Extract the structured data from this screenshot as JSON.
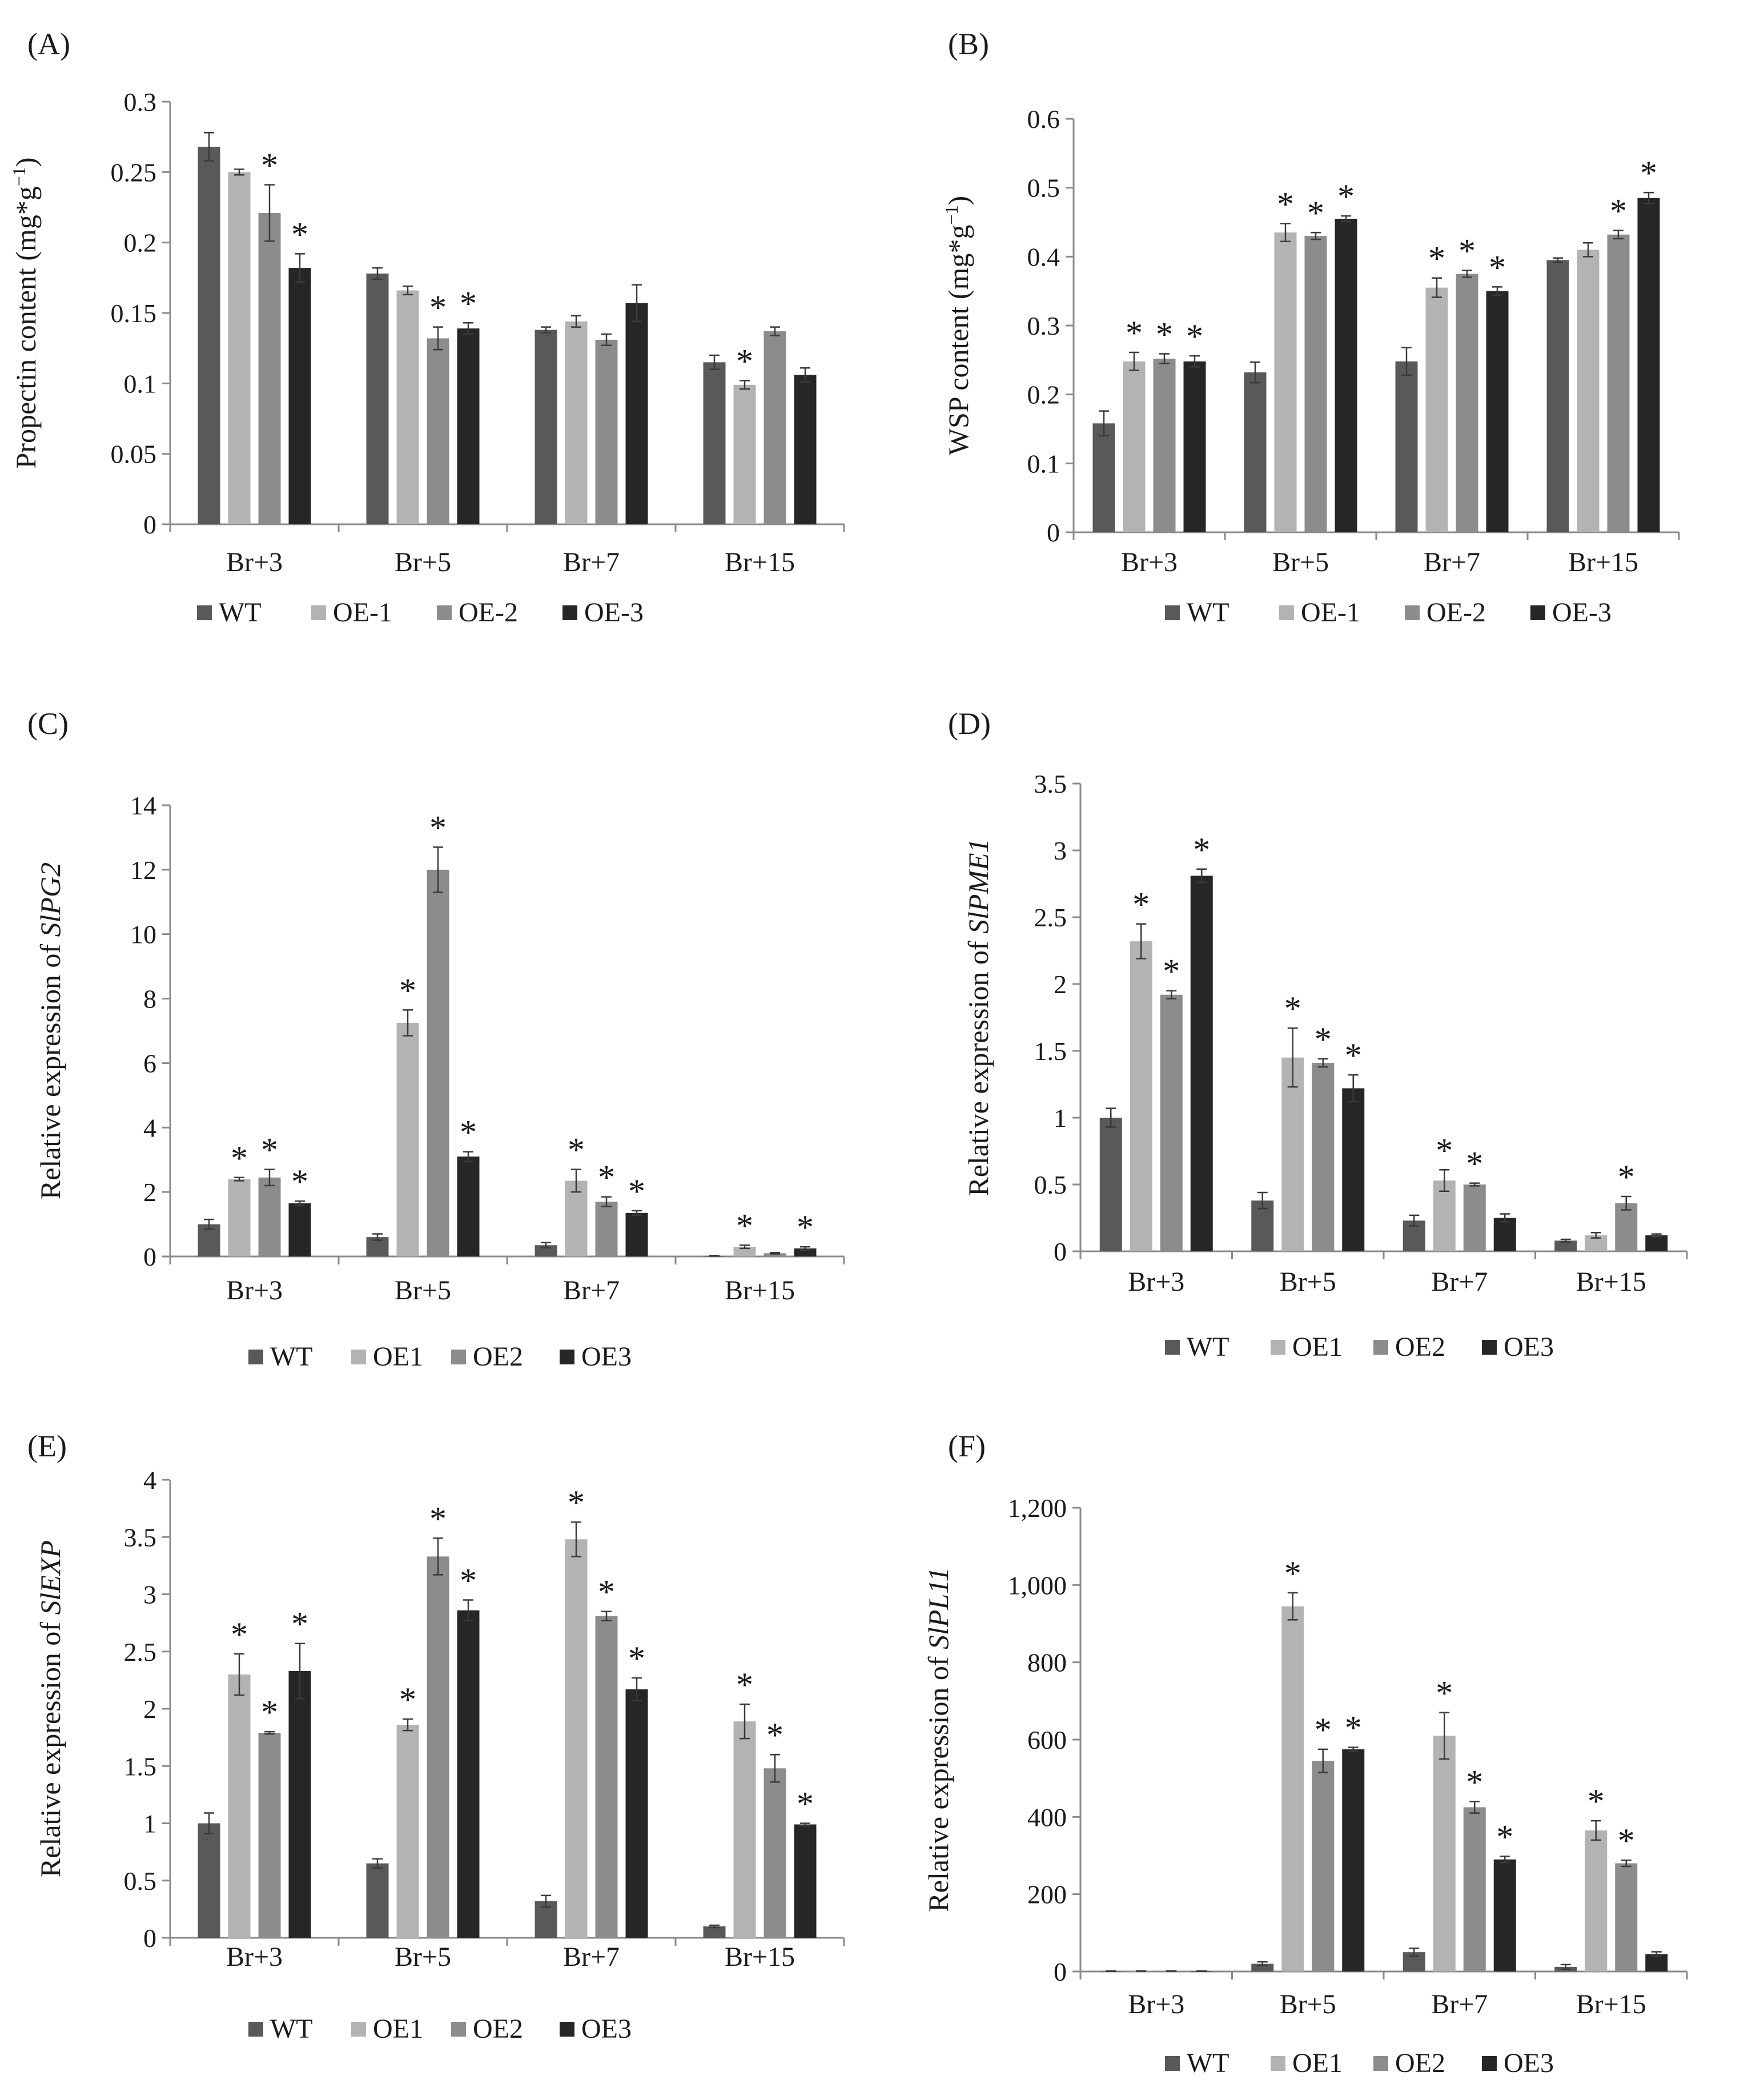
{
  "colors": {
    "WT": "#595959",
    "OE1": "#b3b3b3",
    "OE2": "#8c8c8c",
    "OE3": "#262626",
    "axis": "#8a8a8a",
    "text": "#1a1a1a"
  },
  "chart_data": [
    {
      "id": "A",
      "panel_label": "(A)",
      "type": "bar",
      "ylabel_parts": [
        {
          "text": "Propectin content (mg*g"
        },
        {
          "text": "−1",
          "sup": true
        },
        {
          "text": ")"
        }
      ],
      "ylim": [
        0,
        0.3
      ],
      "ticks": [
        0,
        0.05,
        0.1,
        0.15,
        0.2,
        0.25,
        0.3
      ],
      "tick_labels": [
        "0",
        "0.05",
        "0.1",
        "0.15",
        "0.2",
        "0.25",
        "0.3"
      ],
      "categories": [
        "Br+3",
        "Br+5",
        "Br+7",
        "Br+15"
      ],
      "series": [
        {
          "name": "WT",
          "color_key": "WT",
          "values": [
            0.268,
            0.178,
            0.138,
            0.115
          ],
          "errors": [
            0.01,
            0.004,
            0.002,
            0.005
          ],
          "sig": [
            false,
            false,
            false,
            false
          ]
        },
        {
          "name": "OE-1",
          "color_key": "OE1",
          "values": [
            0.25,
            0.166,
            0.144,
            0.099
          ],
          "errors": [
            0.002,
            0.003,
            0.004,
            0.003
          ],
          "sig": [
            false,
            false,
            false,
            true
          ]
        },
        {
          "name": "OE-2",
          "color_key": "OE2",
          "values": [
            0.221,
            0.132,
            0.131,
            0.137
          ],
          "errors": [
            0.02,
            0.008,
            0.004,
            0.003
          ],
          "sig": [
            true,
            true,
            false,
            false
          ]
        },
        {
          "name": "OE-3",
          "color_key": "OE3",
          "values": [
            0.182,
            0.139,
            0.157,
            0.106
          ],
          "errors": [
            0.01,
            0.004,
            0.013,
            0.005
          ],
          "sig": [
            true,
            true,
            false,
            false
          ]
        }
      ]
    },
    {
      "id": "B",
      "panel_label": "(B)",
      "type": "bar",
      "ylabel_parts": [
        {
          "text": "WSP content (mg*g"
        },
        {
          "text": "−1",
          "sup": true
        },
        {
          "text": ")"
        }
      ],
      "ylim": [
        0,
        0.6
      ],
      "ticks": [
        0,
        0.1,
        0.2,
        0.3,
        0.4,
        0.5,
        0.6
      ],
      "tick_labels": [
        "0",
        "0.1",
        "0.2",
        "0.3",
        "0.4",
        "0.5",
        "0.6"
      ],
      "categories": [
        "Br+3",
        "Br+5",
        "Br+7",
        "Br+15"
      ],
      "series": [
        {
          "name": "WT",
          "color_key": "WT",
          "values": [
            0.158,
            0.232,
            0.248,
            0.395
          ],
          "errors": [
            0.018,
            0.015,
            0.02,
            0.003
          ],
          "sig": [
            false,
            false,
            false,
            false
          ]
        },
        {
          "name": "OE-1",
          "color_key": "OE1",
          "values": [
            0.248,
            0.435,
            0.355,
            0.41
          ],
          "errors": [
            0.013,
            0.013,
            0.014,
            0.01
          ],
          "sig": [
            true,
            true,
            true,
            false
          ]
        },
        {
          "name": "OE-2",
          "color_key": "OE2",
          "values": [
            0.252,
            0.43,
            0.375,
            0.432
          ],
          "errors": [
            0.007,
            0.005,
            0.005,
            0.006
          ],
          "sig": [
            true,
            true,
            true,
            true
          ]
        },
        {
          "name": "OE-3",
          "color_key": "OE3",
          "values": [
            0.248,
            0.455,
            0.35,
            0.485
          ],
          "errors": [
            0.008,
            0.004,
            0.006,
            0.008
          ],
          "sig": [
            true,
            true,
            true,
            true
          ]
        }
      ]
    },
    {
      "id": "C",
      "panel_label": "(C)",
      "type": "bar",
      "ylabel_parts": [
        {
          "text": "Relative expression of "
        },
        {
          "text": "SlPG2",
          "italic": true
        }
      ],
      "ylim": [
        0,
        14
      ],
      "ticks": [
        0,
        2,
        4,
        6,
        8,
        10,
        12,
        14
      ],
      "tick_labels": [
        "0",
        "2",
        "4",
        "6",
        "8",
        "10",
        "12",
        "14"
      ],
      "categories": [
        "Br+3",
        "Br+5",
        "Br+7",
        "Br+15"
      ],
      "series": [
        {
          "name": "WT",
          "color_key": "WT",
          "values": [
            1.0,
            0.6,
            0.35,
            0.02
          ],
          "errors": [
            0.15,
            0.1,
            0.08,
            0.01
          ],
          "sig": [
            false,
            false,
            false,
            false
          ]
        },
        {
          "name": "OE1",
          "color_key": "OE1",
          "values": [
            2.4,
            7.25,
            2.35,
            0.3
          ],
          "errors": [
            0.05,
            0.4,
            0.35,
            0.05
          ],
          "sig": [
            true,
            true,
            true,
            true
          ]
        },
        {
          "name": "OE2",
          "color_key": "OE2",
          "values": [
            2.45,
            12.0,
            1.7,
            0.1
          ],
          "errors": [
            0.25,
            0.7,
            0.15,
            0.02
          ],
          "sig": [
            true,
            true,
            true,
            false
          ]
        },
        {
          "name": "OE3",
          "color_key": "OE3",
          "values": [
            1.65,
            3.1,
            1.35,
            0.25
          ],
          "errors": [
            0.07,
            0.15,
            0.07,
            0.05
          ],
          "sig": [
            true,
            true,
            true,
            true
          ]
        }
      ]
    },
    {
      "id": "D",
      "panel_label": "(D)",
      "type": "bar",
      "ylabel_parts": [
        {
          "text": "Relative expression of "
        },
        {
          "text": "SlPME1",
          "italic": true
        }
      ],
      "ylim": [
        0,
        3.5
      ],
      "ticks": [
        0,
        0.5,
        1,
        1.5,
        2,
        2.5,
        3,
        3.5
      ],
      "tick_labels": [
        "0",
        "0.5",
        "1",
        "1.5",
        "2",
        "2.5",
        "3",
        "3.5"
      ],
      "categories": [
        "Br+3",
        "Br+5",
        "Br+7",
        "Br+15"
      ],
      "series": [
        {
          "name": "WT",
          "color_key": "WT",
          "values": [
            1.0,
            0.38,
            0.23,
            0.08
          ],
          "errors": [
            0.07,
            0.06,
            0.04,
            0.01
          ],
          "sig": [
            false,
            false,
            false,
            false
          ]
        },
        {
          "name": "OE1",
          "color_key": "OE1",
          "values": [
            2.32,
            1.45,
            0.53,
            0.12
          ],
          "errors": [
            0.13,
            0.22,
            0.08,
            0.02
          ],
          "sig": [
            true,
            true,
            true,
            false
          ]
        },
        {
          "name": "OE2",
          "color_key": "OE2",
          "values": [
            1.92,
            1.41,
            0.5,
            0.36
          ],
          "errors": [
            0.03,
            0.03,
            0.01,
            0.05
          ],
          "sig": [
            true,
            true,
            true,
            true
          ]
        },
        {
          "name": "OE3",
          "color_key": "OE3",
          "values": [
            2.81,
            1.22,
            0.25,
            0.12
          ],
          "errors": [
            0.05,
            0.1,
            0.03,
            0.01
          ],
          "sig": [
            true,
            true,
            false,
            false
          ]
        }
      ]
    },
    {
      "id": "E",
      "panel_label": "(E)",
      "type": "bar",
      "ylabel_parts": [
        {
          "text": "Relative expression of "
        },
        {
          "text": "SlEXP",
          "italic": true
        }
      ],
      "ylim": [
        0,
        4
      ],
      "ticks": [
        0,
        0.5,
        1,
        1.5,
        2,
        2.5,
        3,
        3.5,
        4
      ],
      "tick_labels": [
        "0",
        "0.5",
        "1",
        "1.5",
        "2",
        "2.5",
        "3",
        "3.5",
        "4"
      ],
      "categories": [
        "Br+3",
        "Br+5",
        "Br+7",
        "Br+15"
      ],
      "series": [
        {
          "name": "WT",
          "color_key": "WT",
          "values": [
            1.0,
            0.65,
            0.32,
            0.1
          ],
          "errors": [
            0.09,
            0.04,
            0.05,
            0.01
          ],
          "sig": [
            false,
            false,
            false,
            false
          ]
        },
        {
          "name": "OE1",
          "color_key": "OE1",
          "values": [
            2.3,
            1.86,
            3.48,
            1.89
          ],
          "errors": [
            0.18,
            0.05,
            0.15,
            0.15
          ],
          "sig": [
            true,
            true,
            true,
            true
          ]
        },
        {
          "name": "OE2",
          "color_key": "OE2",
          "values": [
            1.79,
            3.33,
            2.81,
            1.48
          ],
          "errors": [
            0.01,
            0.16,
            0.04,
            0.12
          ],
          "sig": [
            true,
            true,
            true,
            true
          ]
        },
        {
          "name": "OE3",
          "color_key": "OE3",
          "values": [
            2.33,
            2.86,
            2.17,
            0.99
          ],
          "errors": [
            0.24,
            0.09,
            0.1,
            0.01
          ],
          "sig": [
            true,
            true,
            true,
            true
          ]
        }
      ]
    },
    {
      "id": "F",
      "panel_label": "(F)",
      "type": "bar",
      "ylabel_parts": [
        {
          "text": "Relative expression of "
        },
        {
          "text": "SlPL11",
          "italic": true
        }
      ],
      "ylim": [
        0,
        1200
      ],
      "ticks": [
        0,
        200,
        400,
        600,
        800,
        1000,
        1200
      ],
      "tick_labels": [
        "0",
        "200",
        "400",
        "600",
        "800",
        "1,000",
        "1,200"
      ],
      "categories": [
        "Br+3",
        "Br+5",
        "Br+7",
        "Br+15"
      ],
      "series": [
        {
          "name": "WT",
          "color_key": "WT",
          "values": [
            1,
            20,
            50,
            12
          ],
          "errors": [
            0.5,
            5,
            10,
            6
          ],
          "sig": [
            false,
            false,
            false,
            false
          ]
        },
        {
          "name": "OE1",
          "color_key": "OE1",
          "values": [
            1,
            945,
            610,
            365
          ],
          "errors": [
            0.5,
            35,
            60,
            25
          ],
          "sig": [
            false,
            true,
            true,
            true
          ]
        },
        {
          "name": "OE2",
          "color_key": "OE2",
          "values": [
            1,
            545,
            425,
            280
          ],
          "errors": [
            0.5,
            30,
            15,
            8
          ],
          "sig": [
            false,
            true,
            true,
            true
          ]
        },
        {
          "name": "OE3",
          "color_key": "OE3",
          "values": [
            1,
            575,
            290,
            45
          ],
          "errors": [
            0.5,
            5,
            8,
            6
          ],
          "sig": [
            false,
            true,
            true,
            false
          ]
        }
      ]
    }
  ]
}
